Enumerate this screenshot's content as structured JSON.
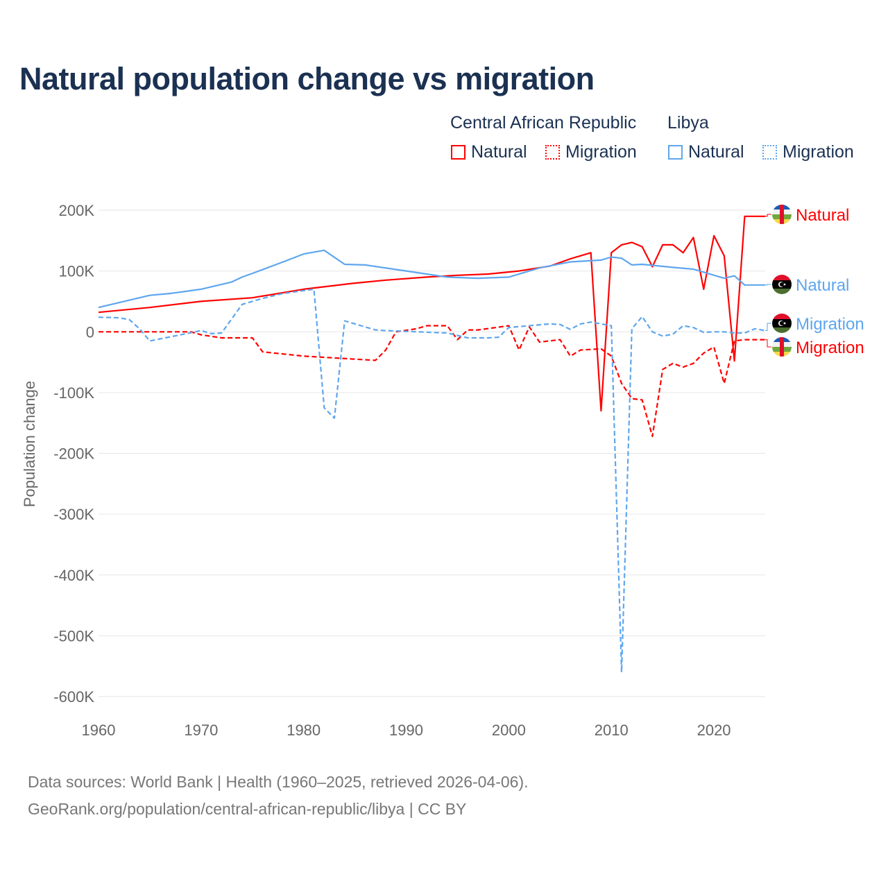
{
  "chart_data": {
    "type": "line",
    "title": "Natural population change vs migration",
    "ylabel": "Population change",
    "xlabel": "",
    "xlim": [
      1960,
      2025
    ],
    "ylim": [
      -600000,
      200000
    ],
    "x_ticks": [
      1960,
      1970,
      1980,
      1990,
      2000,
      2010,
      2020
    ],
    "x_tick_labels": [
      "1960",
      "1970",
      "1980",
      "1990",
      "2000",
      "2010",
      "2020"
    ],
    "y_ticks": [
      200000,
      100000,
      0,
      -100000,
      -200000,
      -300000,
      -400000,
      -500000,
      -600000
    ],
    "y_tick_labels": [
      "200K",
      "100K",
      "0",
      "-100K",
      "-200K",
      "-300K",
      "-400K",
      "-500K",
      "-600K"
    ],
    "grid": true,
    "legend": {
      "placement": "top-right",
      "groups": [
        {
          "country": "Central African Republic",
          "items": [
            "Natural",
            "Migration"
          ]
        },
        {
          "country": "Libya",
          "items": [
            "Natural",
            "Migration"
          ]
        }
      ]
    },
    "colors": {
      "car": "#ff0000",
      "libya": "#5ea6ee"
    },
    "series": [
      {
        "name": "Natural",
        "country": "Central African Republic",
        "style": "solid",
        "flag": "car-flag",
        "points": [
          [
            1960,
            32000
          ],
          [
            1965,
            40000
          ],
          [
            1970,
            50000
          ],
          [
            1975,
            56000
          ],
          [
            1980,
            70000
          ],
          [
            1985,
            80000
          ],
          [
            1988,
            85000
          ],
          [
            1992,
            90000
          ],
          [
            1995,
            93000
          ],
          [
            1998,
            95000
          ],
          [
            2001,
            100000
          ],
          [
            2004,
            108000
          ],
          [
            2006,
            120000
          ],
          [
            2008,
            130000
          ],
          [
            2009,
            -130000
          ],
          [
            2010,
            130000
          ],
          [
            2011,
            143000
          ],
          [
            2012,
            147000
          ],
          [
            2013,
            140000
          ],
          [
            2014,
            107000
          ],
          [
            2015,
            143000
          ],
          [
            2016,
            143000
          ],
          [
            2017,
            130000
          ],
          [
            2018,
            155000
          ],
          [
            2019,
            70000
          ],
          [
            2020,
            158000
          ],
          [
            2021,
            125000
          ],
          [
            2022,
            -48000
          ],
          [
            2023,
            190000
          ],
          [
            2024,
            190000
          ],
          [
            2025,
            190000
          ]
        ]
      },
      {
        "name": "Migration",
        "country": "Central African Republic",
        "style": "dashed",
        "flag": "car-flag",
        "points": [
          [
            1960,
            0
          ],
          [
            1969,
            0
          ],
          [
            1970,
            -5000
          ],
          [
            1972,
            -10000
          ],
          [
            1975,
            -10000
          ],
          [
            1976,
            -33000
          ],
          [
            1980,
            -40000
          ],
          [
            1985,
            -45000
          ],
          [
            1987,
            -47000
          ],
          [
            1988,
            -30000
          ],
          [
            1989,
            0
          ],
          [
            1991,
            5000
          ],
          [
            1992,
            10000
          ],
          [
            1994,
            10000
          ],
          [
            1995,
            -13000
          ],
          [
            1996,
            3000
          ],
          [
            1997,
            3000
          ],
          [
            2000,
            10000
          ],
          [
            2001,
            -30000
          ],
          [
            2002,
            8000
          ],
          [
            2003,
            -17000
          ],
          [
            2005,
            -13000
          ],
          [
            2006,
            -40000
          ],
          [
            2007,
            -30000
          ],
          [
            2009,
            -28000
          ],
          [
            2010,
            -40000
          ],
          [
            2011,
            -85000
          ],
          [
            2012,
            -110000
          ],
          [
            2013,
            -112000
          ],
          [
            2014,
            -172000
          ],
          [
            2015,
            -62000
          ],
          [
            2016,
            -52000
          ],
          [
            2017,
            -58000
          ],
          [
            2018,
            -52000
          ],
          [
            2019,
            -35000
          ],
          [
            2020,
            -25000
          ],
          [
            2021,
            -85000
          ],
          [
            2022,
            -15000
          ],
          [
            2023,
            -13000
          ],
          [
            2024,
            -13000
          ],
          [
            2025,
            -13000
          ]
        ]
      },
      {
        "name": "Natural",
        "country": "Libya",
        "style": "solid",
        "flag": "libya-flag",
        "points": [
          [
            1960,
            40000
          ],
          [
            1965,
            60000
          ],
          [
            1967,
            63000
          ],
          [
            1970,
            70000
          ],
          [
            1973,
            82000
          ],
          [
            1974,
            90000
          ],
          [
            1975,
            96000
          ],
          [
            1978,
            115000
          ],
          [
            1980,
            128000
          ],
          [
            1982,
            134000
          ],
          [
            1984,
            111000
          ],
          [
            1986,
            110000
          ],
          [
            1990,
            100000
          ],
          [
            1994,
            90000
          ],
          [
            1997,
            88000
          ],
          [
            2000,
            90000
          ],
          [
            2003,
            105000
          ],
          [
            2006,
            115000
          ],
          [
            2009,
            118000
          ],
          [
            2010,
            123000
          ],
          [
            2011,
            121000
          ],
          [
            2012,
            110000
          ],
          [
            2013,
            111000
          ],
          [
            2016,
            106000
          ],
          [
            2018,
            103000
          ],
          [
            2021,
            88000
          ],
          [
            2022,
            92000
          ],
          [
            2023,
            77000
          ],
          [
            2024,
            77000
          ],
          [
            2025,
            77000
          ]
        ]
      },
      {
        "name": "Migration",
        "country": "Libya",
        "style": "dashed",
        "flag": "libya-flag",
        "points": [
          [
            1960,
            24000
          ],
          [
            1962,
            23000
          ],
          [
            1963,
            20000
          ],
          [
            1964,
            5000
          ],
          [
            1965,
            -15000
          ],
          [
            1968,
            -5000
          ],
          [
            1970,
            2000
          ],
          [
            1971,
            -3000
          ],
          [
            1972,
            -2000
          ],
          [
            1974,
            45000
          ],
          [
            1976,
            55000
          ],
          [
            1978,
            63000
          ],
          [
            1981,
            70000
          ],
          [
            1982,
            -125000
          ],
          [
            1983,
            -142000
          ],
          [
            1984,
            18000
          ],
          [
            1987,
            3000
          ],
          [
            1988,
            2000
          ],
          [
            1994,
            -2000
          ],
          [
            1996,
            -10000
          ],
          [
            1998,
            -10000
          ],
          [
            1999,
            -9000
          ],
          [
            2000,
            7000
          ],
          [
            2004,
            13000
          ],
          [
            2005,
            12000
          ],
          [
            2006,
            4000
          ],
          [
            2007,
            13000
          ],
          [
            2008,
            16000
          ],
          [
            2009,
            13000
          ],
          [
            2010,
            10000
          ],
          [
            2011,
            -560000
          ],
          [
            2012,
            5000
          ],
          [
            2013,
            25000
          ],
          [
            2014,
            0
          ],
          [
            2015,
            -7000
          ],
          [
            2016,
            -4000
          ],
          [
            2017,
            10000
          ],
          [
            2018,
            7000
          ],
          [
            2019,
            -1000
          ],
          [
            2020,
            0
          ],
          [
            2021,
            0
          ],
          [
            2022,
            -2000
          ],
          [
            2023,
            -2000
          ],
          [
            2024,
            5000
          ],
          [
            2025,
            2000
          ]
        ]
      }
    ]
  },
  "footer": {
    "line1": "Data sources: World Bank | Health (1960–2025, retrieved 2026-04-06).",
    "line2": "GeoRank.org/population/central-african-republic/libya | CC BY"
  }
}
